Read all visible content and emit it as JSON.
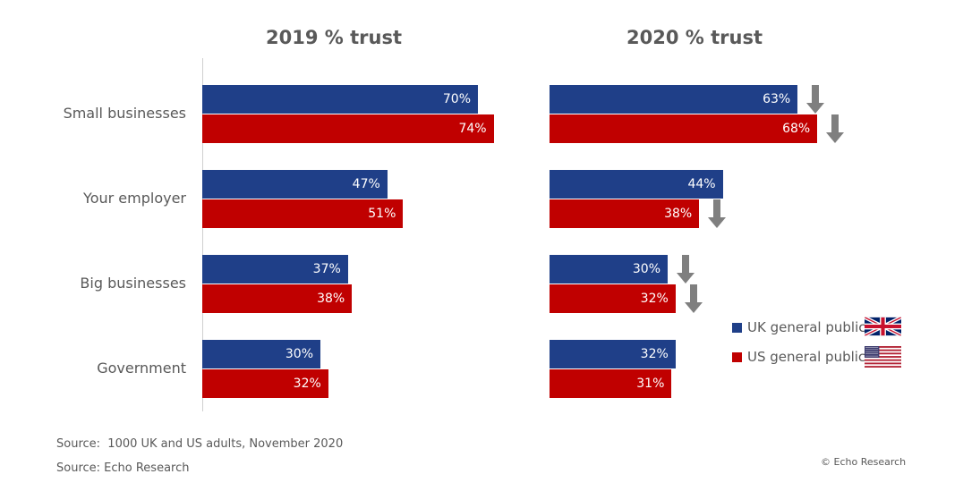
{
  "chart_data": {
    "type": "bar",
    "orientation": "horizontal",
    "categories": [
      "Small businesses",
      "Your employer",
      "Big businesses",
      "Government"
    ],
    "panels": [
      {
        "title": "2019 % trust",
        "series": [
          {
            "name": "UK general public",
            "values": [
              70,
              47,
              37,
              30
            ]
          },
          {
            "name": "US general public",
            "values": [
              74,
              51,
              38,
              32
            ]
          }
        ]
      },
      {
        "title": "2020 % trust",
        "series": [
          {
            "name": "UK general public",
            "values": [
              63,
              44,
              30,
              32
            ]
          },
          {
            "name": "US general public",
            "values": [
              68,
              38,
              32,
              31
            ]
          }
        ],
        "decline_arrows": {
          "UK general public": [
            true,
            false,
            true,
            false
          ],
          "US general public": [
            true,
            true,
            true,
            false
          ]
        }
      }
    ],
    "value_suffix": "%",
    "xlim": [
      0,
      100
    ],
    "grid": false,
    "legend": {
      "placement": "right",
      "entries": [
        {
          "label": "UK general public",
          "color": "#1f3f88",
          "icon": "uk-flag-icon"
        },
        {
          "label": "US general public",
          "color": "#c00000",
          "icon": "us-flag-icon"
        }
      ]
    }
  },
  "colors": {
    "uk": "#1f3f88",
    "us": "#c00000",
    "arrow": "#7f7f7f",
    "text": "#595959"
  },
  "footnotes": {
    "source_1": "Source:  1000 UK and US adults, November 2020",
    "source_2": "Source: Echo Research",
    "copyright": "© Echo Research"
  }
}
